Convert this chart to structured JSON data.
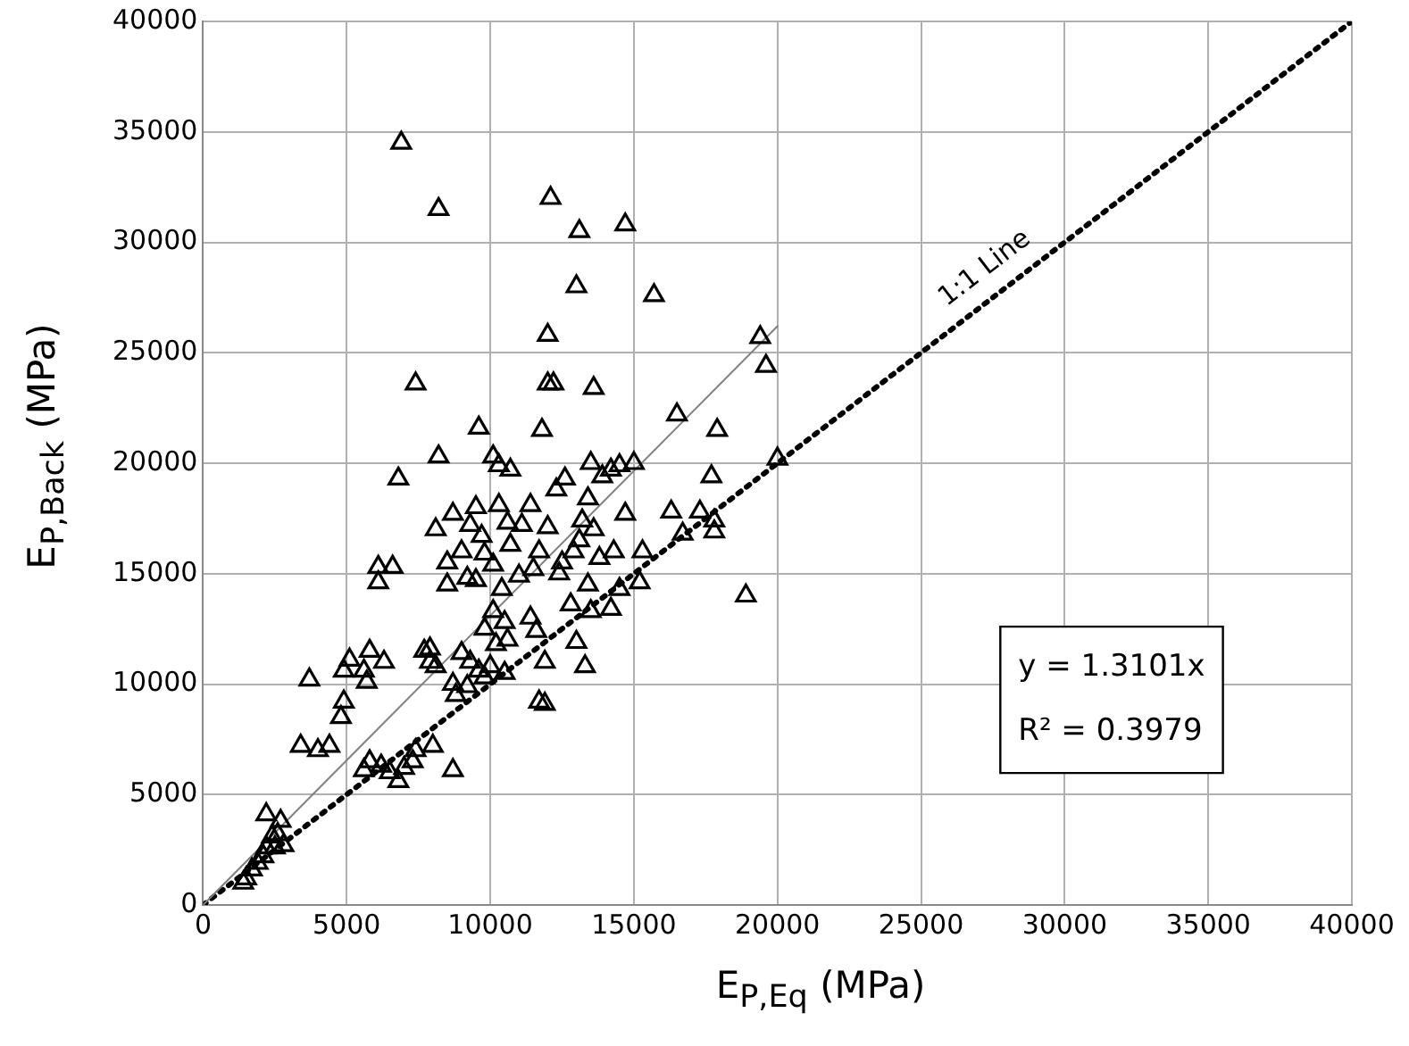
{
  "chart_data": {
    "type": "scatter",
    "xlabel": "E$_{P,Eq}$ (MPa)",
    "ylabel": "E$_{P,Back}$ (MPa)",
    "xlim": [
      0,
      40000
    ],
    "ylim": [
      0,
      40000
    ],
    "xticks": [
      0,
      5000,
      10000,
      15000,
      20000,
      25000,
      30000,
      35000,
      40000
    ],
    "yticks": [
      0,
      5000,
      10000,
      15000,
      20000,
      25000,
      30000,
      35000,
      40000
    ],
    "grid": true,
    "legend": false,
    "annotations": [
      "y = 1.3101x",
      "R² = 0.3979"
    ],
    "series": [
      {
        "color": "#000000",
        "marker": "triangle",
        "x": [
          6900,
          8200,
          12100,
          13100,
          14700,
          13000,
          15700,
          12000,
          12000,
          12200,
          7400,
          13600,
          9600,
          11800,
          8200,
          6800,
          19400,
          19600,
          20000,
          18900,
          16500,
          17900,
          17700,
          17300,
          17800,
          17800,
          16700,
          16300,
          15000,
          14500,
          13900,
          14200,
          13500,
          12600,
          12300,
          15300,
          15200,
          14500,
          14200,
          13500,
          13400,
          13800,
          13100,
          13200,
          12900,
          12500,
          12000,
          11700,
          11500,
          11400,
          11600,
          11900,
          11700,
          11900,
          13300,
          13000,
          12800,
          13600,
          14300,
          14700,
          13400,
          12400,
          11000,
          10400,
          10500,
          10100,
          10200,
          10600,
          10000,
          9800,
          10500,
          9600,
          9200,
          9300,
          9000,
          8700,
          8700,
          8800,
          9800,
          9500,
          9800,
          9000,
          8500,
          8500,
          8100,
          8700,
          9300,
          9500,
          10100,
          10300,
          10700,
          10300,
          10600,
          11400,
          11100,
          10700,
          10100,
          9200,
          9700,
          7900,
          7900,
          8100,
          8000,
          7400,
          7300,
          7000,
          6800,
          6200,
          5800,
          5600,
          6500,
          4800,
          4400,
          4000,
          3400,
          6300,
          5800,
          5600,
          5700,
          4900,
          4900,
          5100,
          3700,
          6100,
          6600,
          6100,
          7700,
          2200,
          2700,
          2400,
          2500,
          2200,
          1900,
          1700,
          1500,
          1400,
          2100,
          2600,
          2800
        ],
        "values": [
          34500,
          31500,
          32000,
          30500,
          30800,
          28000,
          27600,
          25800,
          23600,
          23600,
          23600,
          23400,
          21600,
          21500,
          20300,
          19300,
          25700,
          24400,
          20200,
          14000,
          22200,
          21500,
          19400,
          17800,
          16900,
          17400,
          16800,
          17800,
          20000,
          19900,
          19400,
          19700,
          20000,
          19300,
          18800,
          16000,
          14600,
          14300,
          13400,
          13300,
          14500,
          15700,
          16500,
          17400,
          16000,
          15500,
          17100,
          16000,
          15200,
          13000,
          12400,
          11000,
          9200,
          9100,
          10800,
          11900,
          13600,
          17000,
          16000,
          17700,
          18400,
          15000,
          14900,
          14300,
          12800,
          13300,
          11800,
          12000,
          10800,
          10300,
          10500,
          10600,
          9900,
          11000,
          11400,
          10000,
          6100,
          9500,
          12500,
          14700,
          15900,
          16000,
          14500,
          15500,
          17000,
          17700,
          17200,
          18000,
          20300,
          19900,
          19700,
          18100,
          17300,
          18100,
          17200,
          16300,
          15400,
          14800,
          16700,
          11600,
          11000,
          10800,
          7200,
          7000,
          6500,
          6200,
          5600,
          6300,
          6500,
          6100,
          6000,
          8500,
          7200,
          7000,
          7200,
          11000,
          11500,
          10600,
          10100,
          9200,
          10600,
          11100,
          10200,
          15300,
          15300,
          14600,
          11500,
          4100,
          3800,
          3100,
          2600,
          2600,
          1900,
          1600,
          1200,
          1000,
          2200,
          3200,
          2700
        ]
      },
      {
        "type": "line",
        "color": "#808080",
        "marker": "none",
        "line_style": "solid",
        "x": [
          0,
          20000
        ],
        "values": [
          0,
          26200
        ]
      },
      {
        "type": "line",
        "name": "1:1 Line",
        "color": "#000000",
        "marker": "none",
        "line_style": "dotted",
        "x": [
          0,
          40000
        ],
        "values": [
          0,
          40000
        ]
      }
    ]
  }
}
